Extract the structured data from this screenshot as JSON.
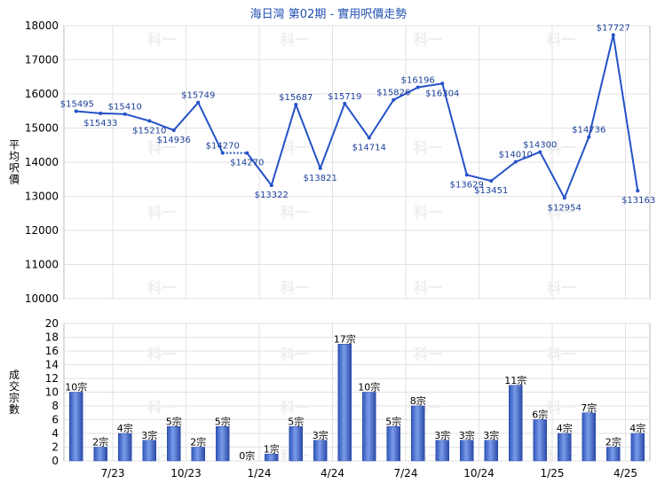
{
  "chart_data": [
    {
      "type": "line",
      "title": "海日灣 第02期 - 實用呎價走勢",
      "ylabel": "平均呎價",
      "ylim": [
        10000,
        18000
      ],
      "yticks": [
        10000,
        11000,
        12000,
        13000,
        14000,
        15000,
        16000,
        17000,
        18000
      ],
      "grid": true,
      "line_color": "#2452c8",
      "series": [
        {
          "values": [
            15495,
            15433,
            15410,
            15210,
            14936,
            15749,
            14270,
            14270,
            13322,
            15687,
            13821,
            15719,
            14714,
            15826,
            16196,
            16304,
            13629,
            13451,
            14010,
            14300,
            12954,
            14736,
            17727,
            13163
          ],
          "labels": [
            "$15495",
            "$15433",
            "$15410",
            "$15210",
            "$14936",
            "$15749",
            "$14270",
            "$14270",
            "$13322",
            "$15687",
            "$13821",
            "$15719",
            "$14714",
            "$15826",
            "$16196",
            "$16304",
            "$13629",
            "$13451",
            "$14010",
            "$14300",
            "$12954",
            "$14736",
            "$17727",
            "$13163"
          ]
        }
      ],
      "interpolated_segments": [
        [
          6,
          7
        ]
      ]
    },
    {
      "type": "bar",
      "ylabel": "成交宗數",
      "ylim": [
        0,
        20
      ],
      "yticks": [
        0,
        2,
        4,
        6,
        8,
        10,
        12,
        14,
        16,
        18,
        20
      ],
      "grid": true,
      "bar_color": "#3b63c4",
      "values": [
        10,
        2,
        4,
        3,
        5,
        2,
        5,
        0,
        1,
        5,
        3,
        17,
        10,
        5,
        8,
        3,
        3,
        3,
        11,
        6,
        4,
        7,
        2,
        4
      ],
      "labels": [
        "10宗",
        "2宗",
        "4宗",
        "3宗",
        "5宗",
        "2宗",
        "5宗",
        "0宗",
        "1宗",
        "5宗",
        "3宗",
        "17宗",
        "10宗",
        "5宗",
        "8宗",
        "3宗",
        "3宗",
        "3宗",
        "11宗",
        "6宗",
        "4宗",
        "7宗",
        "2宗",
        "4宗"
      ],
      "xticks": [
        {
          "label": "7/23",
          "at": 2
        },
        {
          "label": "10/23",
          "at": 5
        },
        {
          "label": "1/24",
          "at": 8
        },
        {
          "label": "4/24",
          "at": 11
        },
        {
          "label": "7/24",
          "at": 14
        },
        {
          "label": "10/24",
          "at": 17
        },
        {
          "label": "1/25",
          "at": 20
        },
        {
          "label": "4/25",
          "at": 23
        }
      ]
    }
  ],
  "watermark": "科一"
}
